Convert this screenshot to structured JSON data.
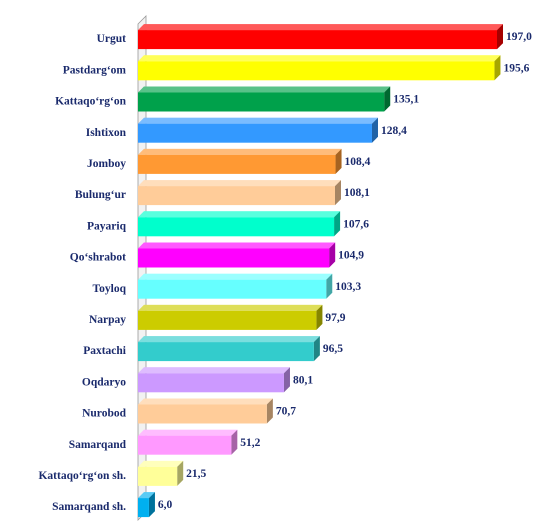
{
  "chart_data": {
    "type": "bar",
    "orientation": "horizontal",
    "categories": [
      "Urgut",
      "Pastdarg‘om",
      "Kattaqo‘rg‘on",
      "Ishtixon",
      "Jomboy",
      "Bulung‘ur",
      "Payariq",
      "Qo‘shrabot",
      "Toyloq",
      "Narpay",
      "Paxtachi",
      "Oqdaryo",
      "Nurobod",
      "Samarqand",
      "Kattaqo‘rg‘on sh.",
      "Samarqand sh."
    ],
    "values": [
      197.0,
      195.6,
      135.1,
      128.4,
      108.4,
      108.1,
      107.6,
      104.9,
      103.3,
      97.9,
      96.5,
      80.1,
      70.7,
      51.2,
      21.5,
      6.0
    ],
    "value_labels": [
      "197,0",
      "195,6",
      "135,1",
      "128,4",
      "108,4",
      "108,1",
      "107,6",
      "104,9",
      "103,3",
      "97,9",
      "96,5",
      "80,1",
      "70,7",
      "51,2",
      "21,5",
      "6,0"
    ],
    "colors": [
      "#ff0000",
      "#ffff00",
      "#00a14b",
      "#3399ff",
      "#ff9933",
      "#ffcc99",
      "#00ffcc",
      "#ff00ff",
      "#66ffff",
      "#cccc00",
      "#33cccc",
      "#cc99ff",
      "#ffcc99",
      "#ff99ff",
      "#ffff99",
      "#00b0f0"
    ]
  }
}
